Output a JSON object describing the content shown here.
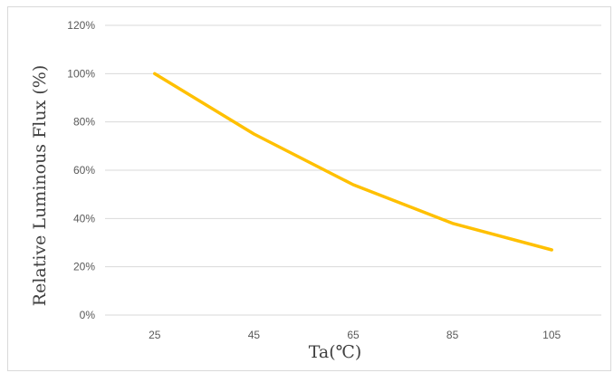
{
  "chart_data": {
    "type": "line",
    "title": "",
    "xlabel": "Ta(℃)",
    "ylabel": "Relative Luminous Flux (%)",
    "categories": [
      "25",
      "45",
      "65",
      "85",
      "105"
    ],
    "series": [
      {
        "values": [
          100,
          75,
          54,
          38,
          27
        ],
        "color": "#FFC000"
      }
    ],
    "y_ticks": [
      "0%",
      "20%",
      "40%",
      "60%",
      "80%",
      "100%",
      "120%"
    ],
    "ylim": [
      0,
      120
    ],
    "y_tick_step": 20,
    "grid": true,
    "legend": "none",
    "colors": {
      "gridline": "#d9d9d9",
      "tick_text": "#595959",
      "axis_title": "#404040"
    }
  }
}
